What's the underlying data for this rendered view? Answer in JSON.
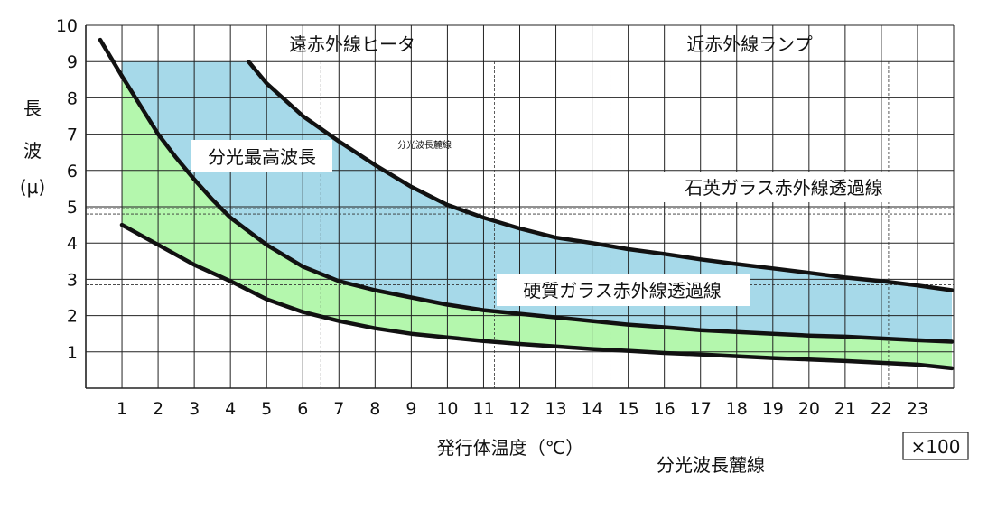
{
  "chart_data": {
    "type": "area",
    "xlabel": "発行体温度（℃）",
    "x_multiplier": "×100",
    "footer_label": "分光波長麓線",
    "ylabel": [
      "長",
      "波",
      "(μ)"
    ],
    "x_ticks": [
      "1",
      "2",
      "3",
      "4",
      "5",
      "6",
      "7",
      "8",
      "9",
      "10",
      "11",
      "12",
      "13",
      "14",
      "15",
      "16",
      "17",
      "18",
      "19",
      "20",
      "21",
      "22",
      "23"
    ],
    "y_ticks": [
      "1",
      "2",
      "3",
      "4",
      "5",
      "6",
      "7",
      "8",
      "9",
      "10"
    ],
    "xlim": [
      0,
      24
    ],
    "ylim": [
      0,
      10
    ],
    "grid": true,
    "region_labels": {
      "far_ir_heater": "遠赤外線ヒータ",
      "near_ir_lamp": "近赤外線ランプ",
      "peak_wavelength": "分光最高波長",
      "spectral_foot_small": "分光波長麓線",
      "quartz_glass": "石英ガラス赤外線透過線",
      "hard_glass": "硬質ガラス赤外線透過線"
    },
    "reference_lines": {
      "quartz_glass_y": [
        4.8,
        4.95
      ],
      "hard_glass_y": [
        2.85,
        3.0
      ],
      "dashed_x": [
        6.5,
        11.3,
        14.5,
        22.2
      ]
    },
    "series": [
      {
        "role": "upper-foot",
        "x": [
          4.5,
          5,
          6,
          7,
          8,
          9,
          10,
          11,
          12,
          13,
          14,
          15,
          16,
          17,
          18,
          19,
          20,
          21,
          22,
          23,
          23.95
        ],
        "y": [
          9.0,
          8.4,
          7.5,
          6.8,
          6.15,
          5.55,
          5.05,
          4.7,
          4.4,
          4.15,
          4.0,
          3.83,
          3.7,
          3.55,
          3.42,
          3.3,
          3.18,
          3.05,
          2.95,
          2.83,
          2.7
        ]
      },
      {
        "role": "peak",
        "x": [
          0.4,
          1,
          1.5,
          2,
          2.5,
          3,
          3.5,
          4,
          5,
          6,
          7,
          8,
          9,
          10,
          11,
          12,
          13,
          14,
          15,
          16,
          17,
          18,
          19,
          20,
          21,
          22,
          23,
          23.95
        ],
        "y": [
          9.6,
          8.6,
          7.8,
          7.0,
          6.35,
          5.75,
          5.2,
          4.7,
          3.95,
          3.35,
          2.95,
          2.7,
          2.5,
          2.3,
          2.15,
          2.05,
          1.95,
          1.85,
          1.75,
          1.68,
          1.6,
          1.55,
          1.5,
          1.45,
          1.42,
          1.37,
          1.32,
          1.28
        ]
      },
      {
        "role": "lower-foot",
        "x": [
          1,
          2,
          3,
          4,
          5,
          6,
          7,
          8,
          9,
          10,
          11,
          12,
          13,
          14,
          15,
          16,
          17,
          18,
          19,
          20,
          21,
          22,
          23,
          23.95
        ],
        "y": [
          4.5,
          3.95,
          3.4,
          2.95,
          2.45,
          2.1,
          1.85,
          1.65,
          1.5,
          1.4,
          1.3,
          1.22,
          1.15,
          1.08,
          1.03,
          0.97,
          0.93,
          0.88,
          0.83,
          0.79,
          0.75,
          0.7,
          0.65,
          0.55
        ]
      }
    ],
    "fills": {
      "blue": "#a6d9e9",
      "green": "#b4f7ad",
      "curve": "#111111",
      "grid": "#222222"
    },
    "band_start_x": 1,
    "band_top_y": 9.0
  }
}
